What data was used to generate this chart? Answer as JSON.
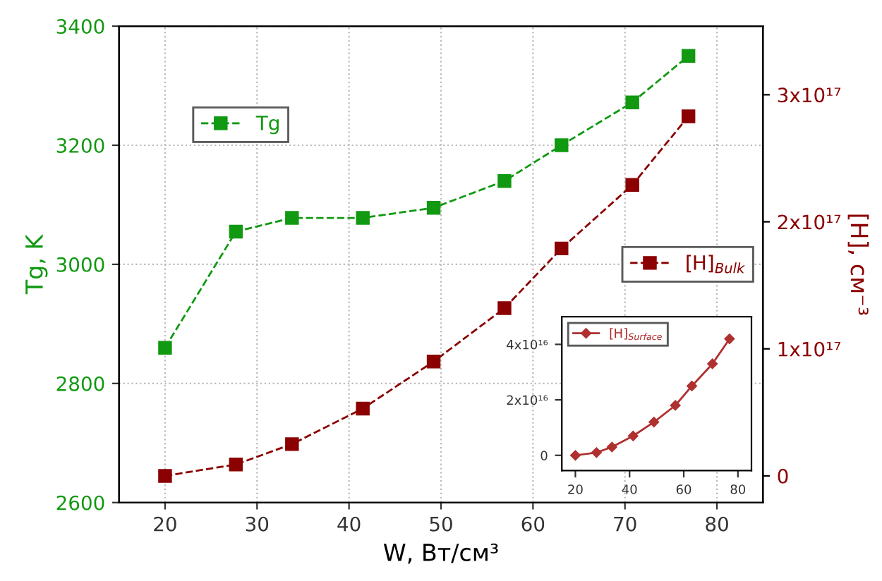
{
  "chart_data": [
    {
      "type": "line",
      "xlabel": "W, Вт/см³",
      "ylabel": "Tg, K",
      "y2label": "[H], см⁻³",
      "x": [
        20,
        27.7,
        33.8,
        41.5,
        49.2,
        56.9,
        63.1,
        70.8,
        76.9
      ],
      "series": [
        {
          "name": "Tg",
          "color": "#119911",
          "values": [
            2860,
            3055,
            3078,
            3078,
            3095,
            3140,
            3200,
            3272,
            3350
          ]
        },
        {
          "name": "[H]$_{Bulk}$",
          "color": "#8b0000",
          "axis": "y2",
          "values": [
            0,
            9000000000000000.0,
            2.5e+16,
            5.3e+16,
            9e+16,
            1.32e+17,
            1.79e+17,
            2.29e+17,
            2.83e+17
          ]
        }
      ],
      "xlim": [
        15,
        85
      ],
      "xticks": [
        20,
        30,
        40,
        50,
        60,
        70,
        80
      ],
      "ylim": [
        2600,
        3400
      ],
      "yticks": [
        2600,
        2800,
        3000,
        3200,
        3400
      ],
      "y2lim": [
        -2.1e+16,
        3.54e+17
      ],
      "y2ticks": [
        0,
        {
          "value": 1e+17,
          "label": "1x10¹⁷"
        },
        {
          "value": 2e+17,
          "label": "2x10¹⁷"
        },
        {
          "value": 3e+17,
          "label": "3x10¹⁷"
        }
      ],
      "grid": true,
      "legend": "top left",
      "marker": "square",
      "line_style": "dashed"
    },
    {
      "type": "line",
      "x": [
        20,
        27.8,
        33.5,
        41.3,
        49,
        56.9,
        63,
        70.6,
        76.9
      ],
      "series": [
        {
          "name": "[H]$_{Surface}$",
          "color": "#b03030",
          "values": [
            0,
            1000000000000000.0,
            3000000000000000.0,
            7000000000000000.0,
            1.2e+16,
            1.8e+16,
            2.5e+16,
            3.3e+16,
            4.2e+16
          ]
        }
      ],
      "xlim": [
        15,
        85
      ],
      "xticks": [
        20,
        40,
        60,
        80
      ],
      "ylim": [
        -5500000000000000.0,
        5e+16
      ],
      "yticks": [
        0,
        {
          "value": 2e+16,
          "label": "2x10¹⁶"
        },
        {
          "value": 4e+16,
          "label": "4x10¹⁶"
        }
      ],
      "grid": false,
      "legend": "top left",
      "marker": "diamond",
      "line_style": "solid"
    }
  ]
}
